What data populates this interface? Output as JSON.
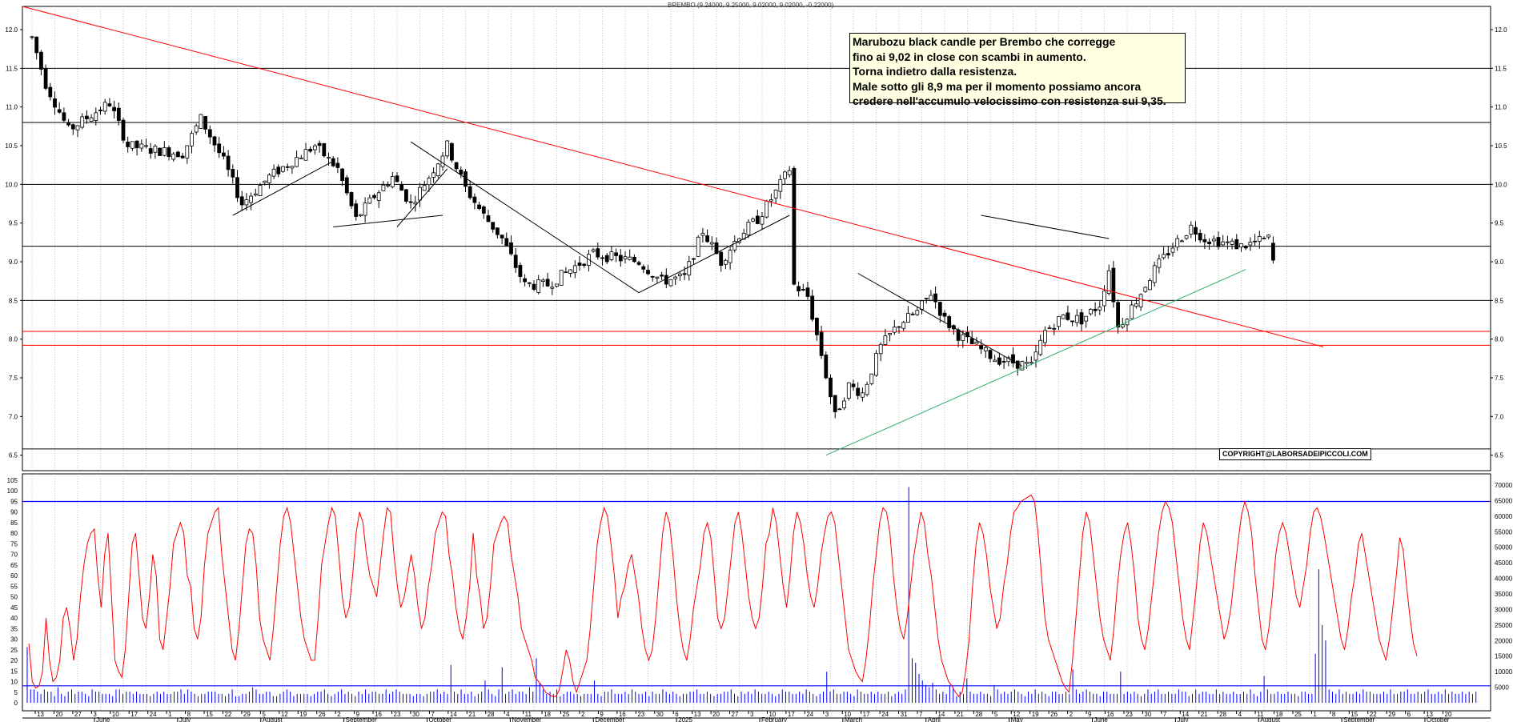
{
  "header": {
    "ticker_line": "BREMBO (9.24000, 9.25000, 9.02000, 9.02000, -0.22000)"
  },
  "annotation": {
    "lines": [
      "Marubozu black candle per Brembo che corregge",
      "fino ai 9,02 in close con scambi in aumento.",
      "Torna indietro dalla resistenza.",
      "Male sotto gli 8,9 ma per il momento possiamo ancora",
      "credere nell'accumulo velocissimo con resistenza sui 9,35."
    ]
  },
  "copyright": "COPYRIGHT@LABORSADEIPICCOLI.COM",
  "colors": {
    "candle": "#000000",
    "trendline_red": "#ff0000",
    "support_green": "#2db36b",
    "oscillator": "#ff0000",
    "volume": "#0000ff",
    "level_lines": "#000000"
  },
  "chart_data": [
    {
      "type": "candlestick",
      "title": "BREMBO",
      "ohlc_last": {
        "open": 9.24,
        "high": 9.25,
        "low": 9.02,
        "close": 9.02,
        "change": -0.22
      },
      "ylim": [
        6.3,
        12.3
      ],
      "y_ticks": [
        "6.5",
        "7.0",
        "7.5",
        "8.0",
        "8.5",
        "9.0",
        "9.5",
        "10.0",
        "10.5",
        "11.0",
        "11.5",
        "12.0"
      ],
      "horizontal_levels": [
        6.58,
        9.2,
        8.5,
        10.0,
        10.8,
        11.5
      ],
      "red_levels": [
        7.92,
        8.1
      ],
      "x_day_ticks": [
        "13",
        "20",
        "27",
        "3",
        "10",
        "17",
        "24",
        "1",
        "8",
        "15",
        "22",
        "29",
        "5",
        "12",
        "19",
        "26",
        "2",
        "9",
        "16",
        "23",
        "30",
        "7",
        "14",
        "21",
        "28",
        "4",
        "11",
        "18",
        "25",
        "2",
        "9",
        "16",
        "23",
        "30",
        "6",
        "13",
        "20",
        "27",
        "3",
        "10",
        "17",
        "24",
        "3",
        "10",
        "17",
        "24",
        "31",
        "7",
        "14",
        "21",
        "28",
        "5",
        "12",
        "19",
        "26",
        "2",
        "9",
        "16",
        "23",
        "30",
        "7",
        "14",
        "21",
        "28",
        "4",
        "11",
        "18",
        "25",
        "1",
        "8",
        "15",
        "22",
        "29",
        "6",
        "13",
        "20"
      ],
      "x_month_labels": [
        "June",
        "July",
        "August",
        "September",
        "October",
        "November",
        "December",
        "2025",
        "February",
        "March",
        "April",
        "May",
        "June",
        "July",
        "August",
        "September",
        "October"
      ],
      "price_path": [
        [
          0,
          11.9
        ],
        [
          3,
          11.3
        ],
        [
          8,
          10.7
        ],
        [
          13,
          10.9
        ],
        [
          17,
          11.05
        ],
        [
          21,
          10.5
        ],
        [
          26,
          10.45
        ],
        [
          33,
          10.4
        ],
        [
          37,
          10.85
        ],
        [
          42,
          10.3
        ],
        [
          46,
          9.75
        ],
        [
          52,
          10.1
        ],
        [
          57,
          10.3
        ],
        [
          62,
          10.5
        ],
        [
          67,
          10.2
        ],
        [
          71,
          9.55
        ],
        [
          75,
          9.85
        ],
        [
          79,
          10.1
        ],
        [
          83,
          9.75
        ],
        [
          87,
          10.1
        ],
        [
          91,
          10.5
        ],
        [
          95,
          9.95
        ],
        [
          99,
          9.6
        ],
        [
          103,
          9.3
        ],
        [
          108,
          8.7
        ],
        [
          113,
          8.7
        ],
        [
          118,
          8.9
        ],
        [
          123,
          9.1
        ],
        [
          128,
          9.05
        ],
        [
          133,
          9.0
        ],
        [
          138,
          8.75
        ],
        [
          143,
          8.8
        ],
        [
          147,
          9.4
        ],
        [
          151,
          9.0
        ],
        [
          155,
          9.35
        ],
        [
          159,
          9.55
        ],
        [
          163,
          9.9
        ],
        [
          166,
          10.2
        ],
        [
          167,
          8.7
        ],
        [
          170,
          8.55
        ],
        [
          173,
          7.8
        ],
        [
          176,
          7.0
        ],
        [
          179,
          7.4
        ],
        [
          182,
          7.3
        ],
        [
          186,
          7.9
        ],
        [
          190,
          8.2
        ],
        [
          194,
          8.35
        ],
        [
          197,
          8.6
        ],
        [
          200,
          8.25
        ],
        [
          203,
          8.05
        ],
        [
          207,
          7.9
        ],
        [
          211,
          7.75
        ],
        [
          215,
          7.7
        ],
        [
          219,
          7.65
        ],
        [
          222,
          8.1
        ],
        [
          226,
          8.3
        ],
        [
          230,
          8.25
        ],
        [
          234,
          8.45
        ],
        [
          236,
          8.9
        ],
        [
          238,
          8.15
        ],
        [
          242,
          8.5
        ],
        [
          246,
          8.9
        ],
        [
          250,
          9.2
        ],
        [
          254,
          9.45
        ],
        [
          257,
          9.3
        ],
        [
          261,
          9.25
        ],
        [
          265,
          9.2
        ],
        [
          268,
          9.25
        ],
        [
          271,
          9.3
        ],
        [
          272,
          9.02
        ]
      ],
      "trendlines": {
        "red_long_resistance": [
          [
            0,
            12.3
          ],
          [
            283,
            7.9
          ]
        ],
        "green_support": [
          [
            174,
            6.5
          ],
          [
            266,
            8.9
          ]
        ]
      },
      "last_candle": {
        "type": "Marubozu black",
        "close": 9.02
      }
    },
    {
      "type": "line+bar",
      "series": [
        {
          "name": "oscillator"
        },
        {
          "name": "volume"
        }
      ],
      "left_ticks": [
        "0",
        "5",
        "10",
        "15",
        "20",
        "25",
        "30",
        "35",
        "40",
        "45",
        "50",
        "55",
        "60",
        "65",
        "70",
        "75",
        "80",
        "85",
        "90",
        "95",
        "100",
        "105"
      ],
      "right_ticks": [
        "5000",
        "10000",
        "15000",
        "20000",
        "25000",
        "30000",
        "35000",
        "40000",
        "45000",
        "50000",
        "55000",
        "60000",
        "65000",
        "70000"
      ],
      "reference_lines": [
        95,
        8
      ],
      "oscillator_values": [
        28,
        10,
        7,
        8,
        15,
        40,
        20,
        10,
        12,
        20,
        40,
        45,
        35,
        20,
        30,
        50,
        65,
        75,
        80,
        82,
        60,
        45,
        70,
        80,
        50,
        20,
        15,
        12,
        25,
        50,
        75,
        80,
        60,
        40,
        35,
        50,
        70,
        60,
        30,
        25,
        40,
        55,
        75,
        80,
        85,
        80,
        60,
        55,
        35,
        30,
        40,
        65,
        80,
        85,
        90,
        92,
        70,
        55,
        40,
        25,
        20,
        35,
        55,
        75,
        82,
        80,
        65,
        40,
        30,
        25,
        20,
        35,
        55,
        75,
        88,
        92,
        85,
        70,
        55,
        40,
        30,
        25,
        20,
        20,
        40,
        65,
        75,
        85,
        92,
        88,
        70,
        50,
        40,
        45,
        60,
        80,
        90,
        85,
        70,
        60,
        55,
        50,
        65,
        80,
        92,
        90,
        70,
        55,
        45,
        50,
        60,
        70,
        60,
        45,
        35,
        40,
        55,
        65,
        80,
        85,
        90,
        88,
        70,
        60,
        45,
        35,
        30,
        40,
        55,
        80,
        60,
        50,
        35,
        40,
        55,
        75,
        80,
        85,
        88,
        85,
        70,
        60,
        50,
        35,
        30,
        25,
        20,
        12,
        10,
        8,
        5,
        4,
        3,
        3,
        6,
        15,
        25,
        20,
        10,
        5,
        10,
        15,
        20,
        35,
        55,
        75,
        85,
        92,
        88,
        75,
        60,
        40,
        50,
        55,
        65,
        70,
        60,
        50,
        35,
        25,
        20,
        25,
        40,
        60,
        80,
        90,
        85,
        70,
        50,
        35,
        25,
        20,
        30,
        45,
        55,
        65,
        80,
        85,
        78,
        60,
        40,
        35,
        40,
        55,
        70,
        85,
        90,
        80,
        65,
        50,
        40,
        35,
        40,
        55,
        75,
        80,
        92,
        85,
        70,
        55,
        45,
        60,
        80,
        90,
        85,
        75,
        60,
        50,
        45,
        55,
        70,
        80,
        88,
        90,
        85,
        70,
        55,
        40,
        25,
        20,
        15,
        12,
        10,
        20,
        35,
        55,
        70,
        85,
        92,
        90,
        80,
        60,
        45,
        35,
        30,
        40,
        55,
        70,
        80,
        90,
        85,
        70,
        60,
        45,
        30,
        20,
        15,
        10,
        8,
        5,
        3,
        5,
        15,
        30,
        55,
        75,
        85,
        80,
        70,
        55,
        45,
        35,
        40,
        55,
        65,
        80,
        90,
        92,
        95,
        96,
        97,
        98,
        95,
        80,
        60,
        40,
        30,
        25,
        20,
        15,
        10,
        7,
        5,
        20,
        40,
        60,
        80,
        90,
        85,
        70,
        55,
        40,
        30,
        25,
        20,
        35,
        55,
        70,
        80,
        85,
        75,
        60,
        40,
        30,
        25,
        35,
        50,
        65,
        80,
        90,
        95,
        92,
        85,
        70,
        55,
        40,
        30,
        25,
        40,
        55,
        75,
        85,
        80,
        70,
        60,
        50,
        40,
        30,
        35,
        45,
        60,
        75,
        88,
        95,
        90,
        80,
        60,
        45,
        30,
        25,
        35,
        50,
        70,
        80,
        85,
        80,
        70,
        60,
        50,
        45,
        55,
        65,
        80,
        90,
        92,
        88,
        80,
        70,
        60,
        50,
        40,
        30,
        25,
        35,
        50,
        60,
        75,
        80,
        70,
        60,
        50,
        40,
        30,
        25,
        20,
        30,
        45,
        60,
        78,
        72,
        55,
        40,
        28,
        22
      ],
      "volume_values": [
        25,
        6,
        6,
        5,
        4,
        6,
        5,
        5,
        3,
        7,
        4,
        3,
        5,
        6,
        4,
        5,
        5,
        4,
        3,
        6,
        5,
        5,
        4,
        4,
        4,
        3,
        6,
        6,
        4,
        5,
        5,
        4,
        5,
        4,
        4,
        4,
        3,
        4,
        5,
        4,
        5,
        4,
        4,
        5,
        5,
        6,
        4,
        6,
        5,
        4,
        3,
        4,
        4,
        5,
        5,
        5,
        4,
        4,
        3,
        4,
        6,
        3,
        3,
        4,
        4,
        5,
        7,
        6,
        4,
        4,
        5,
        5,
        3,
        3,
        4,
        5,
        6,
        5,
        3,
        4,
        4,
        4,
        4,
        3,
        4,
        5,
        5,
        6,
        4,
        3,
        4,
        5,
        6,
        4,
        5,
        4,
        3,
        5,
        4,
        6,
        4,
        5,
        5,
        4,
        4,
        6,
        4,
        5,
        6,
        5,
        4,
        4,
        4,
        3,
        4,
        4,
        3,
        4,
        5,
        5,
        6,
        4,
        5,
        4,
        17,
        5,
        4,
        6,
        4,
        4,
        5,
        3,
        4,
        5,
        10,
        6,
        4,
        3,
        6,
        16,
        4,
        5,
        6,
        4,
        5,
        5,
        4,
        7,
        5,
        20,
        9,
        6,
        4,
        5,
        4,
        6,
        3,
        4,
        5,
        5,
        4,
        4,
        3,
        4,
        4,
        4,
        10,
        4,
        3,
        5,
        5,
        6,
        4,
        4,
        4,
        5,
        4,
        6,
        5,
        4,
        4,
        5,
        3,
        5,
        4,
        4,
        6,
        5,
        4,
        5,
        4,
        3,
        4,
        4,
        5,
        5,
        6,
        4,
        4,
        5,
        4,
        3,
        4,
        4,
        5,
        5,
        6,
        4,
        3,
        5,
        4,
        5,
        4,
        6,
        5,
        4,
        4,
        5,
        4,
        3,
        4,
        6,
        5,
        5,
        4,
        4,
        5,
        4,
        6,
        5,
        4,
        3,
        4,
        5,
        14,
        5,
        6,
        4,
        4,
        5,
        5,
        4,
        3,
        6,
        5,
        4,
        4,
        5,
        4,
        5,
        4,
        4,
        5,
        3,
        4,
        5,
        4,
        6,
        97,
        20,
        18,
        13,
        10,
        8,
        7,
        9,
        6,
        4,
        5,
        4,
        8,
        7,
        3,
        5,
        4,
        11,
        5,
        4,
        4,
        5,
        4,
        4,
        3,
        8,
        6,
        4,
        5,
        4,
        5,
        6,
        5,
        4,
        3,
        5,
        4,
        6,
        4,
        5,
        4,
        3,
        5,
        5,
        4,
        4,
        5,
        4,
        15,
        6,
        4,
        5,
        6,
        5,
        4,
        4,
        3,
        5,
        5,
        4,
        4,
        4,
        14,
        4,
        5,
        4,
        5,
        4,
        3,
        4,
        6,
        4,
        5,
        6,
        4,
        4,
        5,
        4,
        4,
        6,
        5,
        5,
        3,
        4,
        6,
        4,
        5,
        5,
        4,
        4,
        6,
        4,
        5,
        4,
        4,
        5,
        4,
        4,
        5,
        4,
        6,
        4,
        3,
        5,
        12,
        6,
        4,
        4,
        5,
        4,
        4,
        5,
        4,
        4,
        3,
        5,
        5,
        4,
        4,
        22,
        60,
        35,
        28,
        6,
        5,
        4,
        6,
        4,
        5,
        4,
        4,
        5,
        4,
        6,
        5,
        5,
        4,
        4,
        4,
        5,
        4,
        6,
        4,
        4,
        5,
        5,
        6,
        4,
        4,
        5,
        4,
        5,
        6,
        4,
        4,
        5,
        4,
        6,
        4,
        5,
        4,
        4,
        5,
        4,
        5,
        4,
        5
      ]
    }
  ]
}
